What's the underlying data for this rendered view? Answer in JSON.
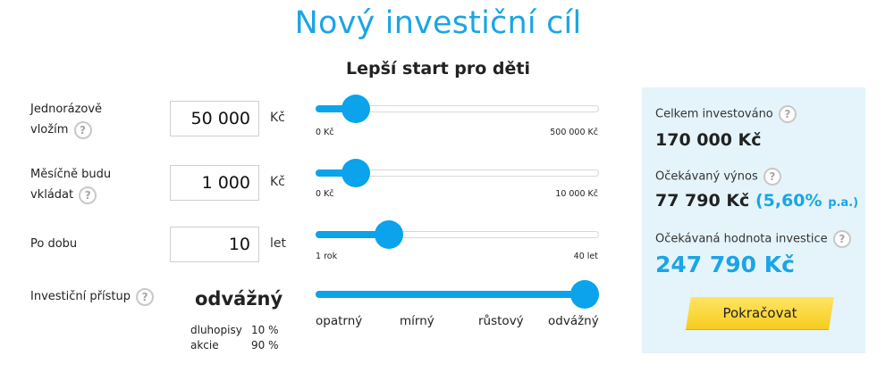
{
  "title": "Nový investiční cíl",
  "subtitle": "Lepší start pro děti",
  "help_glyph": "?",
  "rows": {
    "lump_sum": {
      "label_line1": "Jednorázově",
      "label_line2": "vložím",
      "value": "50 000",
      "unit": "Kč",
      "slider_fraction": 0.1,
      "min_label": "0 Kč",
      "max_label": "500 000 Kč"
    },
    "monthly": {
      "label_line1": "Měsíčně budu",
      "label_line2": "vkládat",
      "value": "1 000",
      "unit": "Kč",
      "slider_fraction": 0.1,
      "min_label": "0 Kč",
      "max_label": "10 000 Kč"
    },
    "duration": {
      "label": "Po dobu",
      "value": "10",
      "unit": "let",
      "slider_fraction": 0.231,
      "min_label": "1 rok",
      "max_label": "40 let"
    },
    "strategy": {
      "label": "Investiční přístup",
      "selected": "odvážný",
      "slider_fraction": 1.0,
      "options": [
        "opatrný",
        "mírný",
        "růstový",
        "odvážný"
      ],
      "allocation": [
        {
          "name": "dluhopisy",
          "share": "10 %"
        },
        {
          "name": "akcie",
          "share": "90 %"
        }
      ]
    }
  },
  "summary": {
    "invested_label": "Celkem investováno",
    "invested_value": "170 000 Kč",
    "yield_label": "Očekávaný výnos",
    "yield_value": "77 790 Kč",
    "yield_rate": "(5,60%",
    "yield_rate_suffix": "p.a.)",
    "final_label": "Očekávaná hodnota investice",
    "final_value": "247 790 Kč",
    "continue_label": "Pokračovat"
  },
  "colors": {
    "accent": "#0aa3ec",
    "title": "#1aa5e6",
    "panel_bg": "#e5f4fb",
    "button": "#f6cd1d"
  }
}
